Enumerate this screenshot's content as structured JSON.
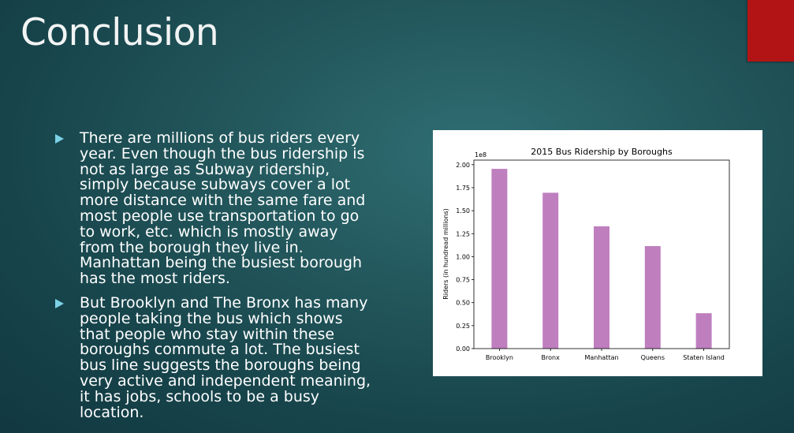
{
  "slide": {
    "title": "Conclusion",
    "bullets": [
      "There are millions of bus riders every year. Even though the bus ridership is not as large as Subway ridership, simply because subways cover a lot more distance with the same fare and most people use transportation to go to work, etc. which is mostly away from the borough they live in. Manhattan being the busiest borough has the most riders.",
      "But Brooklyn and The Bronx has many people taking the bus which shows that people who stay within these boroughs commute a lot. The busiest bus line suggests the boroughs being very active and independent meaning, it has jobs, schools to be a busy location."
    ]
  },
  "colors": {
    "accent_tab": "#b21415",
    "bullet_arrow": "#7cd2e6",
    "bar": "#bf7fbf"
  },
  "chart_data": {
    "type": "bar",
    "title": "2015 Bus Ridership by Boroughs",
    "xlabel": "",
    "ylabel": "Riders (in hundread millions)",
    "offset_label": "1e8",
    "categories": [
      "Brooklyn",
      "Bronx",
      "Manhattan",
      "Queens",
      "Staten Island"
    ],
    "values": [
      195500000,
      169500000,
      133000000,
      111500000,
      38500000
    ],
    "ylim": [
      0,
      205000000
    ],
    "yticks": [
      0,
      25000000,
      50000000,
      75000000,
      100000000,
      125000000,
      150000000,
      175000000,
      200000000
    ],
    "ytick_labels": [
      "0.00",
      "0.25",
      "0.50",
      "0.75",
      "1.00",
      "1.25",
      "1.50",
      "1.75",
      "2.00"
    ],
    "grid": false,
    "color": "#bf7fbf"
  }
}
